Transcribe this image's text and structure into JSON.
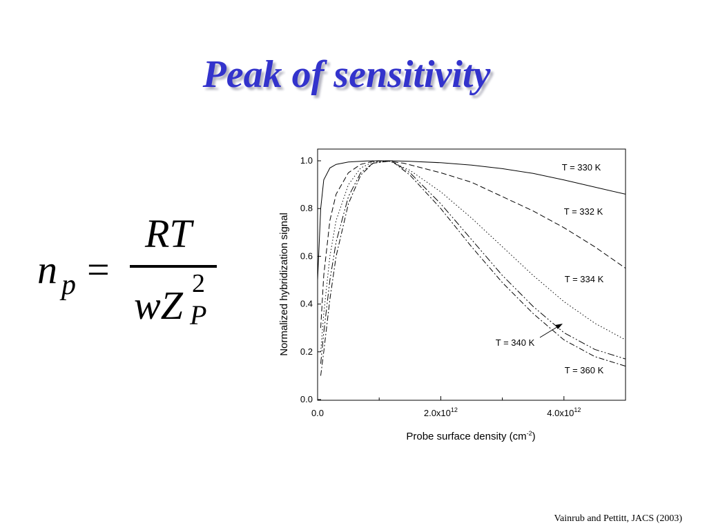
{
  "slide": {
    "title": "Peak of sensitivity",
    "citation": "Vainrub and Pettitt, JACS (2003)"
  },
  "formula": {
    "lhs_base": "n",
    "lhs_sub": "p",
    "equals": "=",
    "numerator": "RT",
    "denominator_base": "wZ",
    "denominator_sup": "2",
    "denominator_sub": "P"
  },
  "chart_data": {
    "type": "line",
    "title": "",
    "xlabel": "Probe surface density (cm",
    "xlabel_sup": "-2",
    "xlabel_suffix": ")",
    "ylabel": "Normalized hybridization signal",
    "xlim": [
      0,
      5000000000000.0
    ],
    "ylim": [
      0,
      1.05
    ],
    "y_ticks": [
      {
        "value": 0.0,
        "label": "0.0"
      },
      {
        "value": 0.2,
        "label": "0.2"
      },
      {
        "value": 0.4,
        "label": "0.4"
      },
      {
        "value": 0.6,
        "label": "0.6"
      },
      {
        "value": 0.8,
        "label": "0.8"
      },
      {
        "value": 1.0,
        "label": "1.0"
      }
    ],
    "x_ticks": [
      {
        "value": 0,
        "label": "0.0",
        "sup": ""
      },
      {
        "value": 2000000000000.0,
        "label": "2.0x10",
        "sup": "12"
      },
      {
        "value": 4000000000000.0,
        "label": "4.0x10",
        "sup": "12"
      }
    ],
    "x_minor_ticks": [
      1000000000000.0,
      3000000000000.0,
      5000000000000.0
    ],
    "grid": false,
    "series": [
      {
        "name": "T = 330 K",
        "dash": "",
        "x": [
          0,
          50000000000.0,
          100000000000.0,
          200000000000.0,
          300000000000.0,
          500000000000.0,
          800000000000.0,
          1000000000000.0,
          1200000000000.0,
          1500000000000.0,
          2000000000000.0,
          2500000000000.0,
          3000000000000.0,
          3500000000000.0,
          4000000000000.0,
          4500000000000.0,
          5000000000000.0
        ],
        "y": [
          0.5,
          0.8,
          0.92,
          0.97,
          0.985,
          0.995,
          0.999,
          1.0,
          1.0,
          0.998,
          0.992,
          0.982,
          0.967,
          0.947,
          0.92,
          0.89,
          0.86
        ]
      },
      {
        "name": "T = 332 K",
        "dash": "8,4",
        "x": [
          50000000000.0,
          100000000000.0,
          200000000000.0,
          300000000000.0,
          500000000000.0,
          700000000000.0,
          900000000000.0,
          1100000000000.0,
          1400000000000.0,
          2000000000000.0,
          2500000000000.0,
          3000000000000.0,
          3500000000000.0,
          4000000000000.0,
          4500000000000.0,
          5000000000000.0
        ],
        "y": [
          0.3,
          0.52,
          0.75,
          0.86,
          0.95,
          0.985,
          0.998,
          1.0,
          0.99,
          0.95,
          0.91,
          0.85,
          0.79,
          0.72,
          0.64,
          0.55
        ]
      },
      {
        "name": "T = 334 K",
        "dash": "1.5,3",
        "x": [
          50000000000.0,
          100000000000.0,
          200000000000.0,
          300000000000.0,
          500000000000.0,
          700000000000.0,
          900000000000.0,
          1150000000000.0,
          1500000000000.0,
          2000000000000.0,
          2500000000000.0,
          3000000000000.0,
          3500000000000.0,
          4000000000000.0,
          4500000000000.0,
          5000000000000.0
        ],
        "y": [
          0.2,
          0.36,
          0.6,
          0.75,
          0.9,
          0.97,
          0.995,
          1.0,
          0.96,
          0.87,
          0.76,
          0.64,
          0.52,
          0.41,
          0.32,
          0.25
        ]
      },
      {
        "name": "T = 340 K",
        "dash": "10,3,2,3,2,3",
        "x": [
          50000000000.0,
          100000000000.0,
          200000000000.0,
          300000000000.0,
          500000000000.0,
          700000000000.0,
          900000000000.0,
          1200000000000.0,
          1500000000000.0,
          2000000000000.0,
          2500000000000.0,
          3000000000000.0,
          3500000000000.0,
          4000000000000.0,
          4500000000000.0,
          5000000000000.0
        ],
        "y": [
          0.15,
          0.28,
          0.5,
          0.66,
          0.85,
          0.95,
          0.99,
          1.0,
          0.95,
          0.82,
          0.67,
          0.52,
          0.39,
          0.28,
          0.21,
          0.17
        ]
      },
      {
        "name": "T = 360 K",
        "dash": "8,3,2,3",
        "x": [
          50000000000.0,
          100000000000.0,
          200000000000.0,
          300000000000.0,
          500000000000.0,
          700000000000.0,
          900000000000.0,
          1200000000000.0,
          1500000000000.0,
          2000000000000.0,
          2500000000000.0,
          3000000000000.0,
          3500000000000.0,
          4000000000000.0,
          4500000000000.0,
          5000000000000.0
        ],
        "y": [
          0.1,
          0.2,
          0.42,
          0.6,
          0.82,
          0.94,
          0.99,
          1.0,
          0.94,
          0.8,
          0.64,
          0.49,
          0.36,
          0.25,
          0.18,
          0.14
        ]
      }
    ],
    "series_labels": [
      {
        "text": "T = 330 K",
        "series": 0
      },
      {
        "text": "T = 332 K",
        "series": 1
      },
      {
        "text": "T = 334 K",
        "series": 2
      },
      {
        "text": "T = 340 K",
        "series": 3
      },
      {
        "text": "T = 360 K",
        "series": 4
      }
    ]
  }
}
